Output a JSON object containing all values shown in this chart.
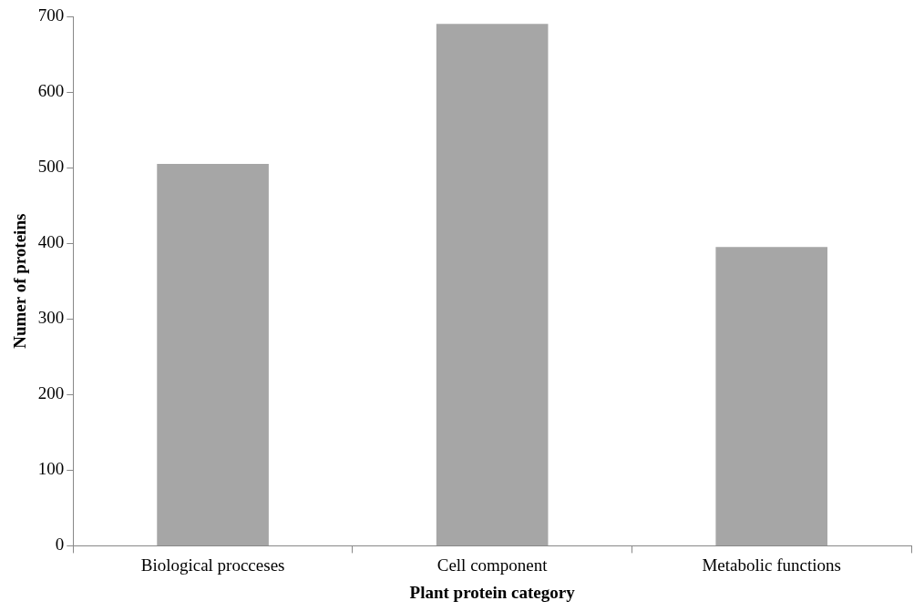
{
  "chart_data": {
    "type": "bar",
    "xlabel": "Plant protein category",
    "ylabel": "Numer of proteins",
    "categories": [
      "Biological procceses",
      "Cell component",
      "Metabolic functions"
    ],
    "values": [
      505,
      690,
      395
    ],
    "color": "#a6a6a6",
    "ylim": [
      0,
      700
    ],
    "yticks": [
      0,
      100,
      200,
      300,
      400,
      500,
      600,
      700
    ],
    "grid": false,
    "legend": false
  }
}
